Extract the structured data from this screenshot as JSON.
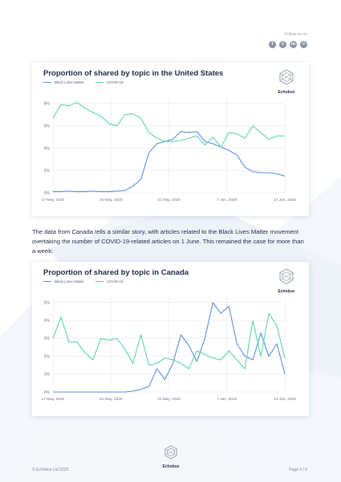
{
  "header": {
    "follow_label": "Follow us on",
    "social_icons": [
      "facebook-icon",
      "twitter-icon",
      "linkedin-icon",
      "email-icon"
    ]
  },
  "brand": {
    "name": "Echobox"
  },
  "body_text": "The data from Canada tells a similar story, with articles related to the Black Lives Matter movement overtaking the number of COVID-19-related articles on 1 June. This remained the case for more than a week:",
  "footer": {
    "copyright": "© Echobox Ltd 2020",
    "page": "Page # / #"
  },
  "colors": {
    "blm": "#5b8fe0",
    "covid": "#5cd6a1",
    "grid": "#e4e8f0",
    "text": "#1f2a44"
  },
  "chart_data": [
    {
      "type": "line",
      "title": "Proportion of shared by topic in the United States",
      "x_ticks": [
        "17 May, 2020",
        "24 May, 2020",
        "31 May, 2020",
        "7 Jun, 2020",
        "14 Jun, 2020"
      ],
      "y_ticks": [
        "0%",
        "2%",
        "4%",
        "6%",
        "8%"
      ],
      "ylim": [
        0,
        8.5
      ],
      "n_points": 30,
      "series": [
        {
          "name": "Black Lives Matter",
          "values": [
            0.1,
            0.1,
            0.15,
            0.1,
            0.1,
            0.15,
            0.1,
            0.1,
            0.15,
            0.2,
            0.6,
            1.2,
            3.6,
            4.4,
            4.6,
            4.8,
            5.5,
            5.4,
            5.5,
            4.6,
            4.4,
            4.1,
            3.8,
            3.4,
            2.3,
            1.9,
            1.8,
            1.8,
            1.7,
            1.5
          ]
        },
        {
          "name": "COVID-19",
          "values": [
            6.7,
            7.9,
            7.8,
            8.1,
            7.6,
            7.2,
            6.9,
            6.2,
            6.0,
            7.0,
            7.1,
            6.7,
            5.4,
            4.9,
            4.6,
            4.6,
            4.7,
            4.9,
            5.1,
            4.3,
            5.0,
            4.1,
            5.4,
            5.3,
            4.9,
            6.0,
            5.4,
            4.8,
            5.1,
            5.1
          ]
        }
      ]
    },
    {
      "type": "line",
      "title": "Proportion of shared by topic in Canada",
      "x_ticks": [
        "17 May, 2020",
        "24 May, 2020",
        "31 May, 2020",
        "7 Jun, 2020",
        "14 Jun, 2020"
      ],
      "y_ticks": [
        "0%",
        "1%",
        "2%",
        "3%",
        "4%",
        "5%"
      ],
      "ylim": [
        0,
        5.3
      ],
      "n_points": 30,
      "series": [
        {
          "name": "Black Lives Matter",
          "values": [
            0,
            0,
            0,
            0,
            0,
            0,
            0,
            0,
            0,
            0,
            0.05,
            0.15,
            0.3,
            1.3,
            0.7,
            1.6,
            3.2,
            2.6,
            1.7,
            3.0,
            5.0,
            4.4,
            4.8,
            2.7,
            2.0,
            1.8,
            3.3,
            2.0,
            2.7,
            1.0
          ]
        },
        {
          "name": "COVID-19",
          "values": [
            3.0,
            4.2,
            2.8,
            2.8,
            2.2,
            1.8,
            3.0,
            2.9,
            3.0,
            2.4,
            1.6,
            3.2,
            1.5,
            1.6,
            1.9,
            1.8,
            1.6,
            1.3,
            2.3,
            2.1,
            1.9,
            1.8,
            2.3,
            1.8,
            1.3,
            4.0,
            2.0,
            4.4,
            3.7,
            1.9
          ]
        }
      ]
    }
  ]
}
